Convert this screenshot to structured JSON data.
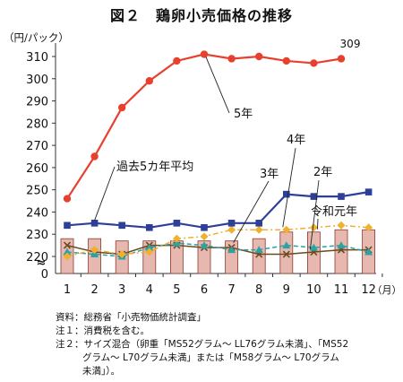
{
  "chart_data": {
    "type": "bar+line",
    "title": "図２　鶏卵小売価格の推移",
    "ylabel": "（円/パック）",
    "xunit": "（月）",
    "axis_break": "≈",
    "categories": [
      "1",
      "2",
      "3",
      "4",
      "5",
      "6",
      "7",
      "8",
      "9",
      "10",
      "11",
      "12"
    ],
    "ylim": [
      210,
      315
    ],
    "yticks": [
      220,
      230,
      240,
      250,
      260,
      270,
      280,
      290,
      300,
      310
    ],
    "ybase_label": "0",
    "bars": {
      "name": "令和元年",
      "color": "#e6b8b0",
      "values": [
        228,
        228,
        227,
        227,
        227,
        227,
        227,
        228,
        231,
        231,
        232,
        232
      ]
    },
    "series": [
      {
        "name": "5年",
        "color": "#e8402e",
        "marker": "circle",
        "values": [
          246,
          265,
          287,
          299,
          308,
          311,
          309,
          310,
          308,
          307,
          309,
          null
        ]
      },
      {
        "name": "過去5カ年平均",
        "color": "#2e3f99",
        "marker": "square",
        "values": [
          234,
          235,
          234,
          233,
          235,
          233,
          235,
          235,
          248,
          247,
          247,
          249
        ]
      },
      {
        "name": "4年",
        "color": "#f0b030",
        "marker": "diamond",
        "dash": "6,3,2,3",
        "values": [
          220,
          223,
          221,
          222,
          228,
          229,
          232,
          232,
          232,
          233,
          234,
          233
        ]
      },
      {
        "name": "3年",
        "color": "#2aa3a3",
        "marker": "triangle",
        "dash": "5,3",
        "values": [
          222,
          221,
          220,
          224,
          226,
          225,
          223,
          223,
          225,
          224,
          225,
          222
        ]
      },
      {
        "name": "2年",
        "color": "#6b4a20",
        "marker": "x",
        "dash": "",
        "values": [
          225,
          222,
          221,
          225,
          225,
          224,
          224,
          221,
          221,
          222,
          223,
          223
        ]
      }
    ],
    "annotations": [
      {
        "text": "309"
      }
    ],
    "grid": false
  },
  "notes": {
    "source": "資料：総務省「小売物価統計調査」",
    "note1": "注１：消費税を含む。",
    "note2_line1": "注２：サイズ混合（卵重「MS52グラム～ LL76グラム未満」、「MS52",
    "note2_line2": "グラム～ L70グラム未満」または「M58グラム～ L70グラム",
    "note2_line3": "未満」）。"
  }
}
